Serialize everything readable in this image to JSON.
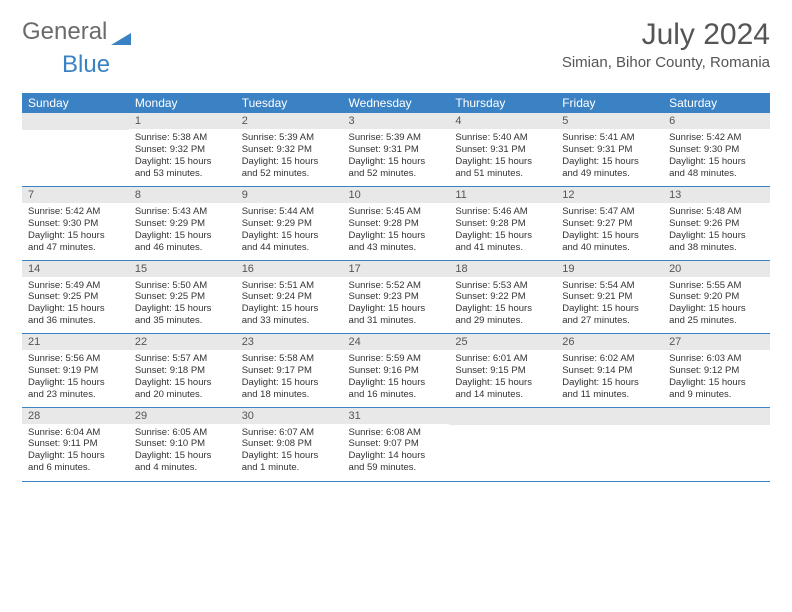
{
  "logo": {
    "text1": "General",
    "text2": "Blue"
  },
  "title": "July 2024",
  "location": "Simian, Bihor County, Romania",
  "colors": {
    "header_bg": "#3b82c4",
    "header_text": "#ffffff",
    "daynum_bg": "#e8e8e8",
    "border": "#3b82c4",
    "text": "#333333",
    "logo_gray": "#6b6b6b",
    "logo_blue": "#3b82c4"
  },
  "weekdays": [
    "Sunday",
    "Monday",
    "Tuesday",
    "Wednesday",
    "Thursday",
    "Friday",
    "Saturday"
  ],
  "weeks": [
    [
      {
        "n": "",
        "lines": []
      },
      {
        "n": "1",
        "lines": [
          "Sunrise: 5:38 AM",
          "Sunset: 9:32 PM",
          "Daylight: 15 hours and 53 minutes."
        ]
      },
      {
        "n": "2",
        "lines": [
          "Sunrise: 5:39 AM",
          "Sunset: 9:32 PM",
          "Daylight: 15 hours and 52 minutes."
        ]
      },
      {
        "n": "3",
        "lines": [
          "Sunrise: 5:39 AM",
          "Sunset: 9:31 PM",
          "Daylight: 15 hours and 52 minutes."
        ]
      },
      {
        "n": "4",
        "lines": [
          "Sunrise: 5:40 AM",
          "Sunset: 9:31 PM",
          "Daylight: 15 hours and 51 minutes."
        ]
      },
      {
        "n": "5",
        "lines": [
          "Sunrise: 5:41 AM",
          "Sunset: 9:31 PM",
          "Daylight: 15 hours and 49 minutes."
        ]
      },
      {
        "n": "6",
        "lines": [
          "Sunrise: 5:42 AM",
          "Sunset: 9:30 PM",
          "Daylight: 15 hours and 48 minutes."
        ]
      }
    ],
    [
      {
        "n": "7",
        "lines": [
          "Sunrise: 5:42 AM",
          "Sunset: 9:30 PM",
          "Daylight: 15 hours and 47 minutes."
        ]
      },
      {
        "n": "8",
        "lines": [
          "Sunrise: 5:43 AM",
          "Sunset: 9:29 PM",
          "Daylight: 15 hours and 46 minutes."
        ]
      },
      {
        "n": "9",
        "lines": [
          "Sunrise: 5:44 AM",
          "Sunset: 9:29 PM",
          "Daylight: 15 hours and 44 minutes."
        ]
      },
      {
        "n": "10",
        "lines": [
          "Sunrise: 5:45 AM",
          "Sunset: 9:28 PM",
          "Daylight: 15 hours and 43 minutes."
        ]
      },
      {
        "n": "11",
        "lines": [
          "Sunrise: 5:46 AM",
          "Sunset: 9:28 PM",
          "Daylight: 15 hours and 41 minutes."
        ]
      },
      {
        "n": "12",
        "lines": [
          "Sunrise: 5:47 AM",
          "Sunset: 9:27 PM",
          "Daylight: 15 hours and 40 minutes."
        ]
      },
      {
        "n": "13",
        "lines": [
          "Sunrise: 5:48 AM",
          "Sunset: 9:26 PM",
          "Daylight: 15 hours and 38 minutes."
        ]
      }
    ],
    [
      {
        "n": "14",
        "lines": [
          "Sunrise: 5:49 AM",
          "Sunset: 9:25 PM",
          "Daylight: 15 hours and 36 minutes."
        ]
      },
      {
        "n": "15",
        "lines": [
          "Sunrise: 5:50 AM",
          "Sunset: 9:25 PM",
          "Daylight: 15 hours and 35 minutes."
        ]
      },
      {
        "n": "16",
        "lines": [
          "Sunrise: 5:51 AM",
          "Sunset: 9:24 PM",
          "Daylight: 15 hours and 33 minutes."
        ]
      },
      {
        "n": "17",
        "lines": [
          "Sunrise: 5:52 AM",
          "Sunset: 9:23 PM",
          "Daylight: 15 hours and 31 minutes."
        ]
      },
      {
        "n": "18",
        "lines": [
          "Sunrise: 5:53 AM",
          "Sunset: 9:22 PM",
          "Daylight: 15 hours and 29 minutes."
        ]
      },
      {
        "n": "19",
        "lines": [
          "Sunrise: 5:54 AM",
          "Sunset: 9:21 PM",
          "Daylight: 15 hours and 27 minutes."
        ]
      },
      {
        "n": "20",
        "lines": [
          "Sunrise: 5:55 AM",
          "Sunset: 9:20 PM",
          "Daylight: 15 hours and 25 minutes."
        ]
      }
    ],
    [
      {
        "n": "21",
        "lines": [
          "Sunrise: 5:56 AM",
          "Sunset: 9:19 PM",
          "Daylight: 15 hours and 23 minutes."
        ]
      },
      {
        "n": "22",
        "lines": [
          "Sunrise: 5:57 AM",
          "Sunset: 9:18 PM",
          "Daylight: 15 hours and 20 minutes."
        ]
      },
      {
        "n": "23",
        "lines": [
          "Sunrise: 5:58 AM",
          "Sunset: 9:17 PM",
          "Daylight: 15 hours and 18 minutes."
        ]
      },
      {
        "n": "24",
        "lines": [
          "Sunrise: 5:59 AM",
          "Sunset: 9:16 PM",
          "Daylight: 15 hours and 16 minutes."
        ]
      },
      {
        "n": "25",
        "lines": [
          "Sunrise: 6:01 AM",
          "Sunset: 9:15 PM",
          "Daylight: 15 hours and 14 minutes."
        ]
      },
      {
        "n": "26",
        "lines": [
          "Sunrise: 6:02 AM",
          "Sunset: 9:14 PM",
          "Daylight: 15 hours and 11 minutes."
        ]
      },
      {
        "n": "27",
        "lines": [
          "Sunrise: 6:03 AM",
          "Sunset: 9:12 PM",
          "Daylight: 15 hours and 9 minutes."
        ]
      }
    ],
    [
      {
        "n": "28",
        "lines": [
          "Sunrise: 6:04 AM",
          "Sunset: 9:11 PM",
          "Daylight: 15 hours and 6 minutes."
        ]
      },
      {
        "n": "29",
        "lines": [
          "Sunrise: 6:05 AM",
          "Sunset: 9:10 PM",
          "Daylight: 15 hours and 4 minutes."
        ]
      },
      {
        "n": "30",
        "lines": [
          "Sunrise: 6:07 AM",
          "Sunset: 9:08 PM",
          "Daylight: 15 hours and 1 minute."
        ]
      },
      {
        "n": "31",
        "lines": [
          "Sunrise: 6:08 AM",
          "Sunset: 9:07 PM",
          "Daylight: 14 hours and 59 minutes."
        ]
      },
      {
        "n": "",
        "lines": []
      },
      {
        "n": "",
        "lines": []
      },
      {
        "n": "",
        "lines": []
      }
    ]
  ]
}
